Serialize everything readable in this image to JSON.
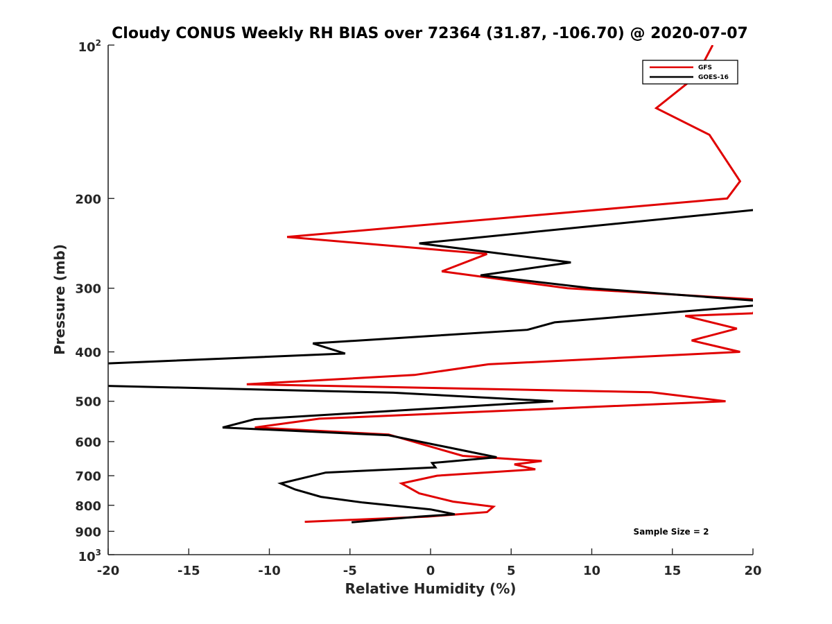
{
  "chart_data": {
    "type": "line",
    "title": "Cloudy CONUS Weekly RH BIAS over 72364 (31.87, -106.70) @ 2020-07-07",
    "xlabel": "Relative Humidity (%)",
    "ylabel": "Pressure (mb)",
    "xlim": [
      -20,
      20
    ],
    "ylim": [
      100,
      1000
    ],
    "yscale": "log",
    "y_reversed": true,
    "grid": false,
    "legend_position": "top-right",
    "x_ticks": [
      "-20",
      "-15",
      "-10",
      "-5",
      "0",
      "5",
      "10",
      "15",
      "20"
    ],
    "y_ticks": [
      {
        "value": 100,
        "base": "10",
        "exp": "2"
      },
      {
        "value": 200,
        "label": "200"
      },
      {
        "value": 300,
        "label": "300"
      },
      {
        "value": 400,
        "label": "400"
      },
      {
        "value": 500,
        "label": "500"
      },
      {
        "value": 600,
        "label": "600"
      },
      {
        "value": 700,
        "label": "700"
      },
      {
        "value": 800,
        "label": "800"
      },
      {
        "value": 900,
        "label": "900"
      },
      {
        "value": 1000,
        "base": "10",
        "exp": "3"
      }
    ],
    "annotation": "Sample Size = 2",
    "series": [
      {
        "name": "GFS",
        "color": "#e00000",
        "points": [
          [
            17.5,
            100
          ],
          [
            16.5,
            115
          ],
          [
            14.0,
            133
          ],
          [
            17.3,
            150
          ],
          [
            19.2,
            185
          ],
          [
            18.4,
            200
          ],
          [
            -8.9,
            238
          ],
          [
            3.5,
            257
          ],
          [
            0.7,
            278
          ],
          [
            8.5,
            300
          ],
          [
            20.5,
            316
          ],
          [
            20.0,
            336
          ],
          [
            15.8,
            340
          ],
          [
            19.0,
            360
          ],
          [
            16.2,
            380
          ],
          [
            19.2,
            400
          ],
          [
            3.6,
            423
          ],
          [
            -1.0,
            444
          ],
          [
            -11.4,
            463
          ],
          [
            13.7,
            480
          ],
          [
            18.3,
            500
          ],
          [
            -6.9,
            541
          ],
          [
            -10.9,
            563
          ],
          [
            -2.6,
            581
          ],
          [
            2.0,
            640
          ],
          [
            6.9,
            655
          ],
          [
            5.2,
            665
          ],
          [
            6.5,
            680
          ],
          [
            0.4,
            700
          ],
          [
            -1.8,
            725
          ],
          [
            -0.7,
            758
          ],
          [
            1.4,
            787
          ],
          [
            3.9,
            805
          ],
          [
            3.5,
            825
          ],
          [
            -0.2,
            842
          ],
          [
            -7.8,
            862
          ]
        ]
      },
      {
        "name": "GOES-16",
        "color": "#000000",
        "points": [
          [
            20.5,
            210
          ],
          [
            -0.7,
            245
          ],
          [
            8.7,
            267
          ],
          [
            3.1,
            283
          ],
          [
            10.0,
            300
          ],
          [
            20.5,
            318
          ],
          [
            20.3,
            324
          ],
          [
            7.7,
            350
          ],
          [
            6.0,
            362
          ],
          [
            -7.3,
            385
          ],
          [
            -5.3,
            403
          ],
          [
            -20.5,
            422
          ],
          [
            -20.5,
            466
          ],
          [
            -2.3,
            481
          ],
          [
            7.6,
            500
          ],
          [
            -10.9,
            542
          ],
          [
            -12.9,
            563
          ],
          [
            -2.6,
            583
          ],
          [
            4.1,
            644
          ],
          [
            0.1,
            661
          ],
          [
            0.3,
            674
          ],
          [
            -6.5,
            690
          ],
          [
            -9.3,
            725
          ],
          [
            -8.4,
            745
          ],
          [
            -6.8,
            770
          ],
          [
            -4.2,
            790
          ],
          [
            0.0,
            815
          ],
          [
            1.5,
            833
          ],
          [
            -0.7,
            842
          ],
          [
            -4.9,
            864
          ]
        ]
      }
    ]
  }
}
